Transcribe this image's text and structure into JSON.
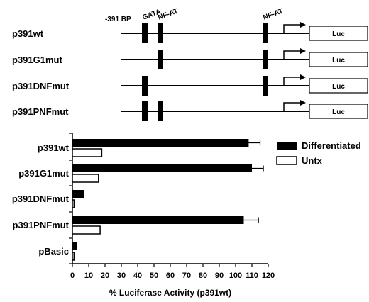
{
  "constructs": {
    "start_label": "-391 BP",
    "site_labels": [
      {
        "text": "GATA",
        "site": "gata"
      },
      {
        "text": "NF-AT",
        "site": "nfat1"
      },
      {
        "text": "NF-AT",
        "site": "nfat2"
      }
    ],
    "reporter_label": "Luc",
    "rows": [
      {
        "name": "p391wt",
        "sites": [
          "gata",
          "nfat1",
          "nfat2"
        ]
      },
      {
        "name": "p391G1mut",
        "sites": [
          "nfat1",
          "nfat2"
        ]
      },
      {
        "name": "p391DNFmut",
        "sites": [
          "gata",
          "nfat2"
        ]
      },
      {
        "name": "p391PNFmut",
        "sites": [
          "gata",
          "nfat1"
        ]
      }
    ]
  },
  "chart_data": {
    "type": "bar",
    "orientation": "horizontal",
    "categories": [
      "p391wt",
      "p391G1mut",
      "p391DNFmut",
      "p391PNFmut",
      "pBasic"
    ],
    "series": [
      {
        "name": "Differentiated",
        "color": "#000000",
        "fill": "solid",
        "values": [
          108,
          110,
          7,
          105,
          3
        ],
        "errors": [
          7,
          7,
          0,
          9,
          0
        ]
      },
      {
        "name": "Untx",
        "color": "#000000",
        "fill": "hollow",
        "values": [
          18,
          16,
          1,
          17,
          1
        ],
        "errors": [
          0,
          0,
          0,
          0,
          0
        ]
      }
    ],
    "xlim": [
      0,
      120
    ],
    "xticks": [
      0,
      10,
      20,
      30,
      40,
      50,
      60,
      70,
      80,
      90,
      100,
      110,
      120
    ],
    "xlabel": "% Luciferase Activity (p391wt)",
    "ylabel": "",
    "grid": false,
    "legend": "top-right"
  }
}
